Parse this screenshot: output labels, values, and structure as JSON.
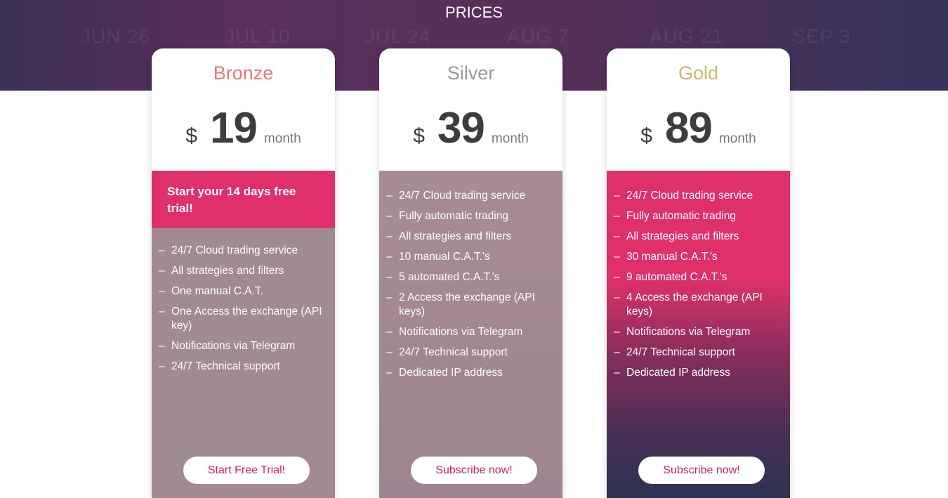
{
  "header": {
    "title": "PRICES",
    "background_labels": [
      "JUN 26",
      "JUL 10",
      "JUL 24",
      "AUG 7",
      "AUG 21",
      "SEP 3"
    ]
  },
  "plans": [
    {
      "name": "Bronze",
      "name_color": "#e8787a",
      "currency": "$",
      "price": "19",
      "period": "month",
      "trial": "Start your 14 days free trial!",
      "features": [
        "24/7 Cloud trading service",
        "All strategies and filters",
        "One manual C.A.T.",
        "One Access the exchange (API key)",
        "Notifications via Telegram",
        "24/7 Technical support"
      ],
      "button": "Start Free Trial!"
    },
    {
      "name": "Silver",
      "name_color": "#999999",
      "currency": "$",
      "price": "39",
      "period": "month",
      "features": [
        "24/7 Cloud trading service",
        "Fully automatic trading",
        "All strategies and filters",
        "10 manual C.A.T.'s",
        "5 automated C.A.T.'s",
        "2 Access the exchange (API keys)",
        "Notifications via Telegram",
        "24/7 Technical support",
        "Dedicated IP address"
      ],
      "button": "Subscribe now!"
    },
    {
      "name": "Gold",
      "name_color": "#d4b46a",
      "currency": "$",
      "price": "89",
      "period": "month",
      "features": [
        "24/7 Cloud trading service",
        "Fully automatic trading",
        "All strategies and filters",
        "30 manual C.A.T.'s",
        "9 automated C.A.T.'s",
        "4 Access the exchange (API keys)",
        "Notifications via Telegram",
        "24/7 Technical support",
        "Dedicated IP address"
      ],
      "button": "Subscribe now!"
    }
  ]
}
